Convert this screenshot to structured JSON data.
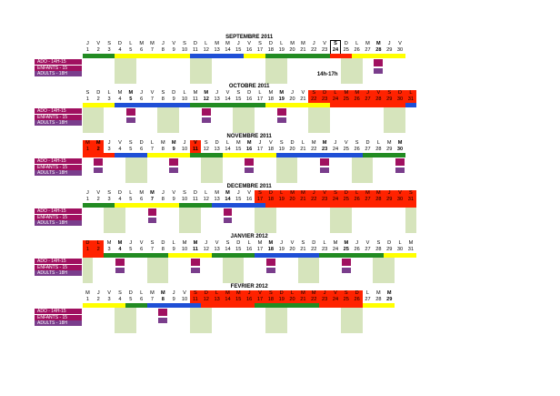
{
  "colors": {
    "red": "#ff2200",
    "green": "#228b22",
    "yellow": "#ffff00",
    "blue": "#1f4fd6",
    "light_green": "#d6e4bc",
    "maroon": "#a01060",
    "purple": "#7a3d8c"
  },
  "row_labels": [
    "ADO - 14H-15",
    "ENFANTS - 15",
    "ADULTS - 18H"
  ],
  "note": "14h-17h",
  "months": [
    {
      "title": "SEPTEMBRE 2011",
      "days": [
        "J",
        "V",
        "S",
        "D",
        "L",
        "M",
        "M",
        "J",
        "V",
        "S",
        "D",
        "L",
        "M",
        "M",
        "J",
        "V",
        "S",
        "D",
        "L",
        "M",
        "M",
        "J",
        "V",
        "S",
        "D",
        "L",
        "M",
        "M",
        "J",
        "V"
      ],
      "nums": [
        "1",
        "2",
        "3",
        "4",
        "5",
        "6",
        "7",
        "8",
        "9",
        "10",
        "11",
        "12",
        "13",
        "14",
        "15",
        "16",
        "17",
        "18",
        "19",
        "20",
        "21",
        "22",
        "23",
        "24",
        "25",
        "26",
        "27",
        "28",
        "29",
        "30"
      ],
      "bold": [
        24,
        28
      ],
      "red": [],
      "boxed": [
        24
      ]
    },
    {
      "title": "OCTOBRE 2011",
      "days": [
        "S",
        "D",
        "L",
        "M",
        "M",
        "J",
        "V",
        "S",
        "D",
        "L",
        "M",
        "M",
        "J",
        "V",
        "S",
        "D",
        "L",
        "M",
        "M",
        "J",
        "V",
        "S",
        "D",
        "L",
        "M",
        "M",
        "J",
        "V",
        "S",
        "D",
        "L"
      ],
      "nums": [
        "1",
        "2",
        "3",
        "4",
        "5",
        "6",
        "7",
        "8",
        "9",
        "10",
        "11",
        "12",
        "13",
        "14",
        "15",
        "16",
        "17",
        "18",
        "19",
        "20",
        "21",
        "22",
        "23",
        "24",
        "25",
        "26",
        "27",
        "28",
        "29",
        "30",
        "31"
      ],
      "bold": [
        5,
        12,
        19
      ],
      "red": [
        22,
        23,
        24,
        25,
        26,
        27,
        28,
        29,
        30,
        31
      ],
      "boxed": []
    },
    {
      "title": "NOVEMBRE 2011",
      "days": [
        "M",
        "M",
        "J",
        "V",
        "S",
        "D",
        "L",
        "M",
        "M",
        "J",
        "V",
        "S",
        "D",
        "L",
        "M",
        "M",
        "J",
        "V",
        "S",
        "D",
        "L",
        "M",
        "M",
        "J",
        "V",
        "S",
        "D",
        "L",
        "M",
        "M"
      ],
      "nums": [
        "1",
        "2",
        "3",
        "4",
        "5",
        "6",
        "7",
        "8",
        "9",
        "10",
        "11",
        "12",
        "13",
        "14",
        "15",
        "16",
        "17",
        "18",
        "19",
        "20",
        "21",
        "22",
        "23",
        "24",
        "25",
        "26",
        "27",
        "28",
        "29",
        "30"
      ],
      "bold": [
        2,
        9,
        11,
        16,
        23,
        30
      ],
      "red": [
        1,
        2,
        11
      ],
      "boxed": []
    },
    {
      "title": "DECEMBRE 2011",
      "days": [
        "J",
        "V",
        "S",
        "D",
        "L",
        "M",
        "M",
        "J",
        "V",
        "S",
        "D",
        "L",
        "M",
        "M",
        "J",
        "V",
        "S",
        "D",
        "L",
        "M",
        "M",
        "J",
        "V",
        "S",
        "D",
        "L",
        "M",
        "M",
        "J",
        "V",
        "S"
      ],
      "nums": [
        "1",
        "2",
        "3",
        "4",
        "5",
        "6",
        "7",
        "8",
        "9",
        "10",
        "11",
        "12",
        "13",
        "14",
        "15",
        "16",
        "17",
        "18",
        "19",
        "20",
        "21",
        "22",
        "23",
        "24",
        "25",
        "26",
        "27",
        "28",
        "29",
        "30",
        "31"
      ],
      "bold": [
        7,
        14
      ],
      "red": [
        17,
        18,
        19,
        20,
        21,
        22,
        23,
        24,
        25,
        26,
        27,
        28,
        29,
        30,
        31
      ],
      "boxed": []
    },
    {
      "title": "JANVIER 2012",
      "days": [
        "D",
        "L",
        "M",
        "M",
        "J",
        "V",
        "S",
        "D",
        "L",
        "M",
        "M",
        "J",
        "V",
        "S",
        "D",
        "L",
        "M",
        "M",
        "J",
        "V",
        "S",
        "D",
        "L",
        "M",
        "M",
        "J",
        "V",
        "S",
        "D",
        "L",
        "M"
      ],
      "nums": [
        "1",
        "2",
        "3",
        "4",
        "5",
        "6",
        "7",
        "8",
        "9",
        "10",
        "11",
        "12",
        "13",
        "14",
        "15",
        "16",
        "17",
        "18",
        "19",
        "20",
        "21",
        "22",
        "23",
        "24",
        "25",
        "26",
        "27",
        "28",
        "29",
        "30",
        "31"
      ],
      "bold": [
        4,
        11,
        18,
        25
      ],
      "red": [
        1,
        2
      ],
      "boxed": []
    },
    {
      "title": "FEVRIER 2012",
      "days": [
        "M",
        "J",
        "V",
        "S",
        "D",
        "L",
        "M",
        "M",
        "J",
        "V",
        "S",
        "D",
        "L",
        "M",
        "M",
        "J",
        "V",
        "S",
        "D",
        "L",
        "M",
        "M",
        "J",
        "V",
        "S",
        "D",
        "L",
        "M",
        "M"
      ],
      "nums": [
        "1",
        "2",
        "3",
        "4",
        "5",
        "6",
        "7",
        "8",
        "9",
        "10",
        "11",
        "12",
        "13",
        "14",
        "15",
        "16",
        "17",
        "18",
        "19",
        "20",
        "21",
        "22",
        "23",
        "24",
        "25",
        "26",
        "27",
        "28",
        "29"
      ],
      "bold": [
        8,
        29
      ],
      "red": [
        11,
        12,
        13,
        14,
        15,
        16,
        17,
        18,
        19,
        20,
        21,
        22,
        23,
        24,
        25,
        26
      ],
      "boxed": []
    }
  ]
}
